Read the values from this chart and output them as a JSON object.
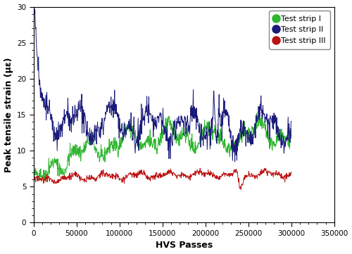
{
  "title": "",
  "xlabel": "HVS Passes",
  "ylabel": "Peak tensile strain (με)",
  "xlim": [
    0,
    350000
  ],
  "ylim": [
    0,
    30
  ],
  "yticks": [
    0,
    5,
    10,
    15,
    20,
    25,
    30
  ],
  "xticks": [
    0,
    50000,
    100000,
    150000,
    200000,
    250000,
    300000,
    350000
  ],
  "legend": [
    "Test strip I",
    "Test strip II",
    "Test strip III"
  ],
  "colors": [
    "#2db52d",
    "#1a1a7a",
    "#bb1111"
  ],
  "linewidth": 0.7,
  "seed": 42,
  "figsize": [
    5.0,
    3.61
  ],
  "dpi": 100
}
